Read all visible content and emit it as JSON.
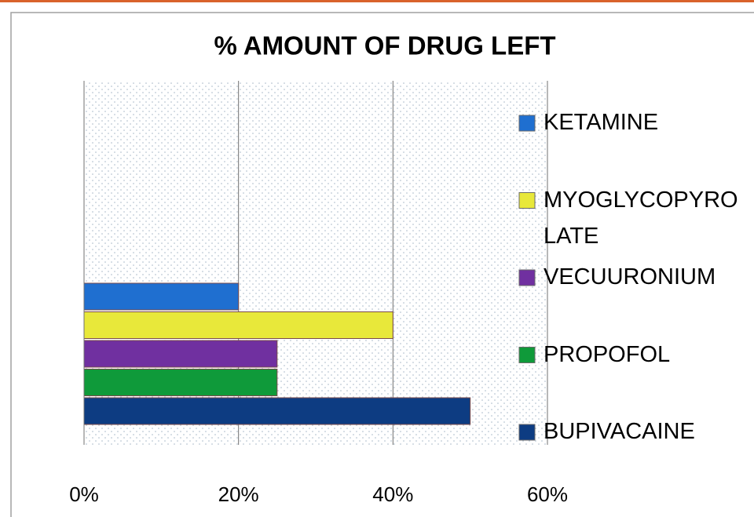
{
  "chart_data": {
    "type": "bar",
    "orientation": "horizontal",
    "title": "% AMOUNT OF DRUG LEFT",
    "series": [
      {
        "name": "BUPIVACAINE",
        "color": "#0d3c82",
        "values": [
          50
        ]
      },
      {
        "name": "PROPOFOL",
        "color": "#0f9a3a",
        "values": [
          25
        ]
      },
      {
        "name": "VECUURONIUM",
        "color": "#7030a0",
        "values": [
          25
        ]
      },
      {
        "name": "MYOGLYCOPYROLATE",
        "color": "#e8e83a",
        "values": [
          40
        ]
      },
      {
        "name": "KETAMINE",
        "color": "#1f6fd0",
        "values": [
          20
        ]
      }
    ],
    "xlim": [
      0,
      60
    ],
    "xticks": [
      {
        "value": 0,
        "label": "0%"
      },
      {
        "value": 20,
        "label": "20%"
      },
      {
        "value": 40,
        "label": "40%"
      },
      {
        "value": 60,
        "label": "60%"
      }
    ],
    "grid": true,
    "legend": "right"
  }
}
